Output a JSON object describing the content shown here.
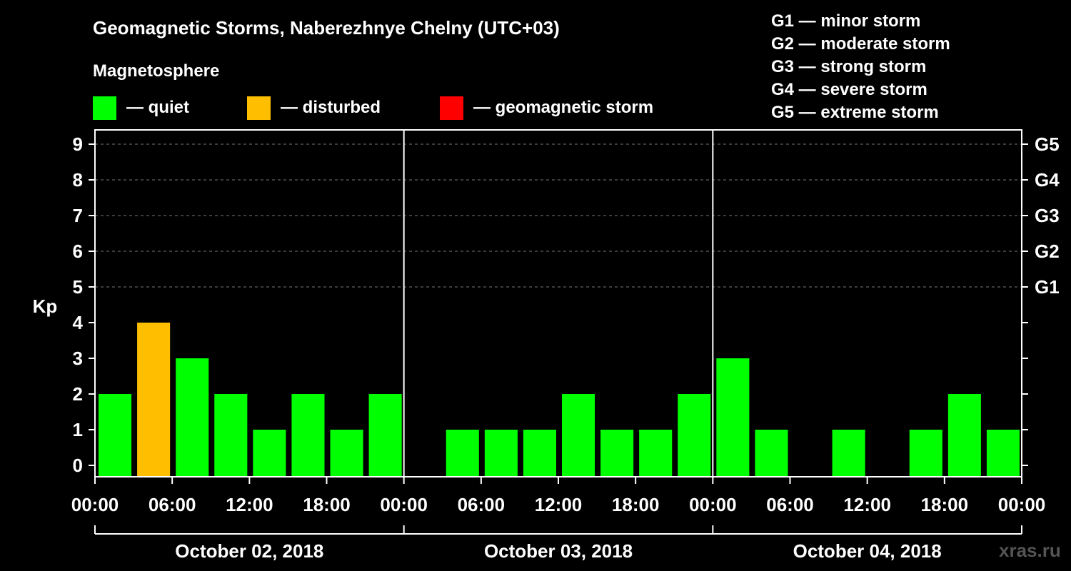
{
  "title": "Geomagnetic Storms, Naberezhnye Chelny (UTC+03)",
  "subtitle": "Magnetosphere",
  "status_legend": [
    {
      "label": "— quiet",
      "color": "#00ff00"
    },
    {
      "label": "— disturbed",
      "color": "#ffbf00"
    },
    {
      "label": "— geomagnetic storm",
      "color": "#ff0000"
    }
  ],
  "storm_legend": [
    "G1 — minor storm",
    "G2 — moderate storm",
    "G3 — strong storm",
    "G4 — severe storm",
    "G5 — extreme storm"
  ],
  "watermark": "xras.ru",
  "chart_data": {
    "type": "bar",
    "ylabel": "Kp",
    "ylim": [
      0,
      9
    ],
    "yticks": [
      "0",
      "1",
      "2",
      "3",
      "4",
      "5",
      "6",
      "7",
      "8",
      "9"
    ],
    "right_labels": [
      {
        "level": 5,
        "label": "G1"
      },
      {
        "level": 6,
        "label": "G2"
      },
      {
        "level": 7,
        "label": "G3"
      },
      {
        "level": 8,
        "label": "G4"
      },
      {
        "level": 9,
        "label": "G5"
      }
    ],
    "xtick_labels": [
      "00:00",
      "06:00",
      "12:00",
      "18:00",
      "00:00",
      "06:00",
      "12:00",
      "18:00",
      "00:00",
      "06:00",
      "12:00",
      "18:00",
      "00:00"
    ],
    "days": [
      "October 02, 2018",
      "October 03, 2018",
      "October 04, 2018"
    ],
    "interval_hours": 3,
    "kp_values": [
      2,
      4,
      3,
      2,
      1,
      2,
      1,
      2,
      0,
      1,
      1,
      1,
      2,
      1,
      1,
      2,
      3,
      1,
      0,
      1,
      0,
      1,
      2,
      1
    ],
    "colors": {
      "quiet": "#00ff00",
      "disturbed": "#ffbf00",
      "storm": "#ff0000"
    },
    "thresholds": {
      "disturbed": 4,
      "storm": 5
    }
  }
}
